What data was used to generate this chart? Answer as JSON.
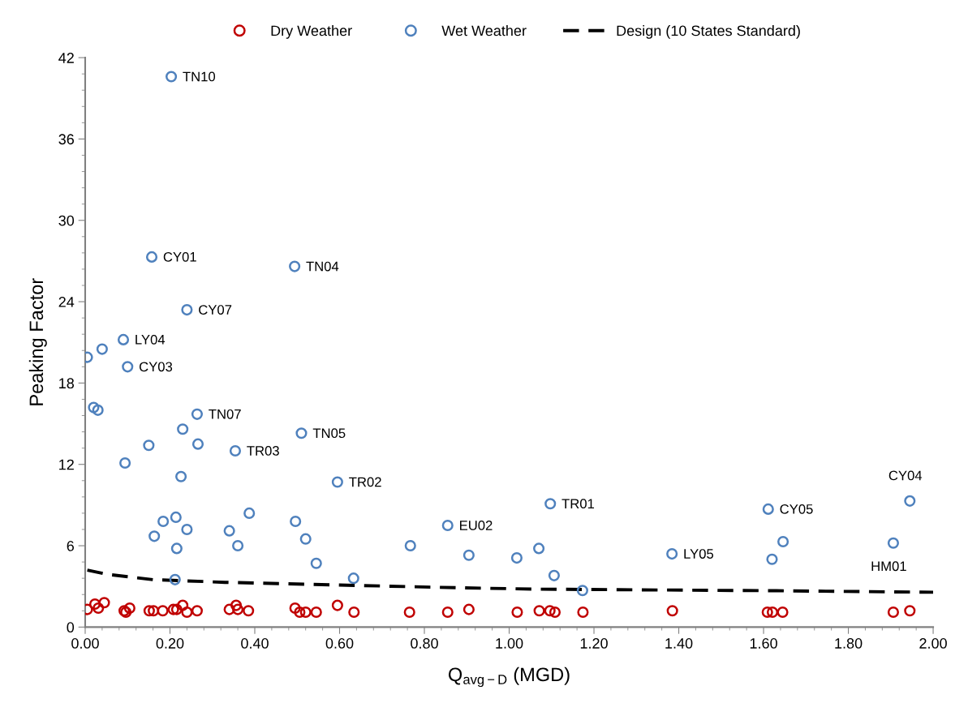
{
  "chart_data": {
    "type": "scatter",
    "xlabel": "Q$_{avg−D}$ (MGD)",
    "ylabel": "Peaking Factor",
    "xlim": [
      0,
      2
    ],
    "ylim": [
      0,
      42
    ],
    "xticks": [
      {
        "value": 0,
        "label": "0.00"
      },
      {
        "value": 0.2,
        "label": "0.20"
      },
      {
        "value": 0.4,
        "label": "0.40"
      },
      {
        "value": 0.6,
        "label": "0.60"
      },
      {
        "value": 0.8,
        "label": "0.80"
      },
      {
        "value": 1.0,
        "label": "1.00"
      },
      {
        "value": 1.2,
        "label": "1.20"
      },
      {
        "value": 1.4,
        "label": "1.40"
      },
      {
        "value": 1.6,
        "label": "1.60"
      },
      {
        "value": 1.8,
        "label": "1.80"
      },
      {
        "value": 2.0,
        "label": "2.00"
      }
    ],
    "yticks": [
      0,
      6,
      12,
      18,
      24,
      30,
      36,
      42
    ],
    "grid": false,
    "legend": "top",
    "marker": "circle",
    "series": [
      {
        "name": "Dry Weather",
        "color": "#c00000",
        "x": [
          0.005,
          0.023,
          0.031,
          0.045,
          0.092,
          0.096,
          0.105,
          0.151,
          0.161,
          0.183,
          0.208,
          0.216,
          0.23,
          0.24,
          0.264,
          0.34,
          0.356,
          0.36,
          0.385,
          0.495,
          0.506,
          0.52,
          0.545,
          0.595,
          0.634,
          0.765,
          0.855,
          0.905,
          1.019,
          1.071,
          1.096,
          1.108,
          1.174,
          1.385,
          1.609,
          1.621,
          1.645,
          1.906,
          1.945
        ],
        "values": [
          1.3,
          1.7,
          1.4,
          1.8,
          1.2,
          1.1,
          1.4,
          1.2,
          1.2,
          1.2,
          1.3,
          1.3,
          1.6,
          1.1,
          1.2,
          1.3,
          1.6,
          1.3,
          1.2,
          1.4,
          1.1,
          1.1,
          1.1,
          1.6,
          1.1,
          1.1,
          1.1,
          1.3,
          1.1,
          1.2,
          1.2,
          1.1,
          1.1,
          1.2,
          1.1,
          1.1,
          1.1,
          1.1,
          1.2
        ]
      },
      {
        "name": "Wet Weather",
        "color": "#4f81bd",
        "x": [
          0.494,
          0.005,
          0.04,
          0.09,
          0.1,
          0.02,
          0.03,
          0.157,
          0.203,
          0.24,
          0.264,
          0.23,
          0.15,
          0.266,
          0.354,
          0.51,
          0.094,
          0.226,
          0.595,
          0.184,
          0.214,
          0.24,
          0.163,
          0.216,
          0.34,
          0.387,
          0.36,
          0.496,
          0.52,
          0.545,
          0.212,
          0.633,
          0.767,
          0.855,
          0.905,
          1.018,
          1.07,
          1.097,
          1.106,
          1.173,
          1.384,
          1.611,
          1.62,
          1.646,
          1.906,
          1.945
        ],
        "values": [
          26.6,
          19.9,
          20.5,
          21.2,
          19.2,
          16.2,
          16.0,
          27.3,
          40.6,
          23.4,
          15.7,
          14.6,
          13.4,
          13.5,
          13.0,
          14.3,
          12.1,
          11.1,
          10.7,
          7.8,
          8.1,
          7.2,
          6.7,
          5.8,
          7.1,
          8.4,
          6.0,
          7.8,
          6.5,
          4.7,
          3.5,
          3.6,
          6.0,
          7.5,
          5.3,
          5.1,
          5.8,
          9.1,
          3.8,
          2.7,
          5.4,
          8.7,
          5.0,
          6.3,
          6.2,
          9.3
        ]
      },
      {
        "name": "Design (10 States Standard)",
        "type": "line",
        "color": "#000000",
        "line_style": "dashed",
        "marker": "none",
        "x": [
          0.005,
          0.05,
          0.16,
          0.33,
          0.6,
          0.88,
          1.06,
          1.29,
          1.63,
          2.0
        ],
        "values": [
          4.2,
          3.9,
          3.5,
          3.3,
          3.1,
          2.9,
          2.8,
          2.75,
          2.68,
          2.57
        ]
      }
    ],
    "annotations": [
      {
        "text": "TN10",
        "x": 0.203,
        "y": 40.6
      },
      {
        "text": "CY01",
        "x": 0.157,
        "y": 27.3
      },
      {
        "text": "TN04",
        "x": 0.494,
        "y": 26.6
      },
      {
        "text": "CY07",
        "x": 0.24,
        "y": 23.4
      },
      {
        "text": "LY04",
        "x": 0.09,
        "y": 21.2
      },
      {
        "text": "CY03",
        "x": 0.1,
        "y": 19.2
      },
      {
        "text": "TN07",
        "x": 0.264,
        "y": 15.7
      },
      {
        "text": "TN05",
        "x": 0.51,
        "y": 14.3
      },
      {
        "text": "TR03",
        "x": 0.354,
        "y": 13.0
      },
      {
        "text": "TR02",
        "x": 0.595,
        "y": 10.7
      },
      {
        "text": "EU02",
        "x": 0.855,
        "y": 7.5
      },
      {
        "text": "TR01",
        "x": 1.097,
        "y": 9.1
      },
      {
        "text": "LY05",
        "x": 1.384,
        "y": 5.4
      },
      {
        "text": "CY05",
        "x": 1.611,
        "y": 8.7
      },
      {
        "text": "HM01",
        "x": 1.906,
        "y": 6.2
      },
      {
        "text": "CY04",
        "x": 1.945,
        "y": 9.3
      }
    ]
  }
}
